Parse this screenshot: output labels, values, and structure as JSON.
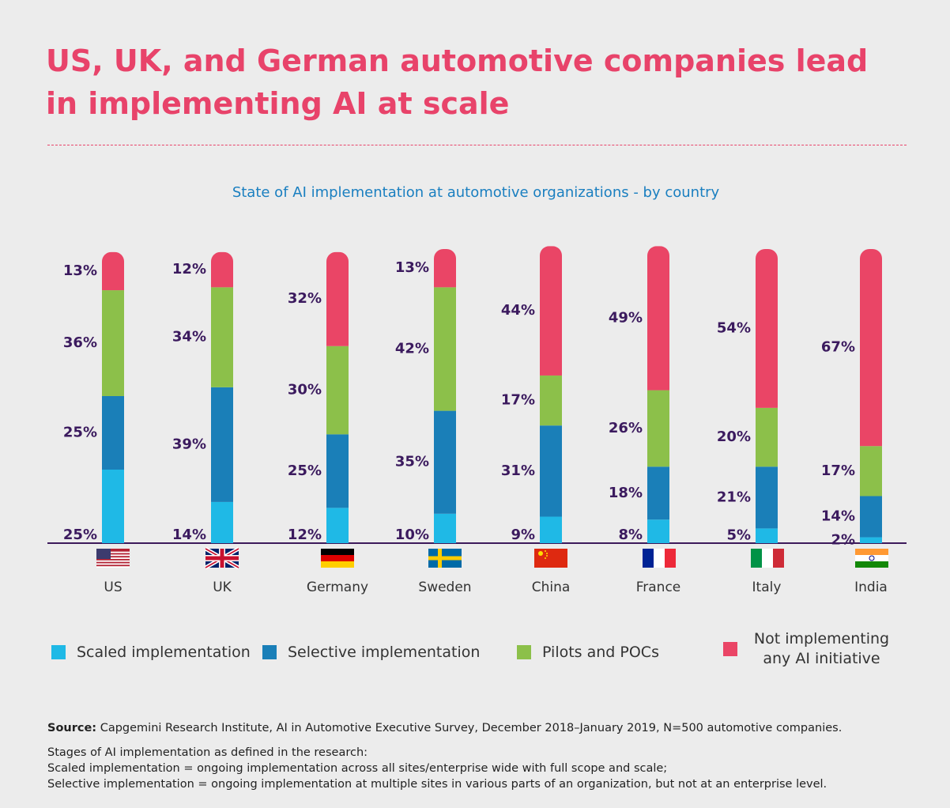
{
  "chart_data": {
    "type": "stacked_bar",
    "title": "US, UK, and German automotive companies lead in implementing AI at scale",
    "subtitle": "State of AI implementation at automotive organizations - by country",
    "categories": [
      "US",
      "UK",
      "Germany",
      "Sweden",
      "China",
      "France",
      "Italy",
      "India"
    ],
    "series": [
      {
        "name": "Scaled implementation",
        "color": "#1fb9e6",
        "values": [
          25,
          14,
          12,
          10,
          9,
          8,
          5,
          2
        ],
        "value_labels": [
          "25%",
          "14%",
          "12%",
          "10%",
          "9%",
          "8%",
          "5%",
          "2%"
        ]
      },
      {
        "name": "Selective implementation",
        "color": "#1a7fb8",
        "values": [
          25,
          39,
          25,
          35,
          31,
          18,
          21,
          14
        ],
        "value_labels": [
          "25%",
          "39%",
          "25%",
          "35%",
          "31%",
          "18%",
          "21%",
          "14%"
        ]
      },
      {
        "name": "Pilots and POCs",
        "color": "#8cc04a",
        "values": [
          36,
          34,
          30,
          42,
          17,
          26,
          20,
          17
        ],
        "value_labels": [
          "36%",
          "34%",
          "30%",
          "42%",
          "17%",
          "26%",
          "20%",
          "17%"
        ]
      },
      {
        "name": "Not implementing any AI initiative",
        "color": "#ea4566",
        "values": [
          13,
          12,
          32,
          13,
          44,
          49,
          54,
          67
        ],
        "value_labels": [
          "13%",
          "12%",
          "32%",
          "13%",
          "44%",
          "49%",
          "54%",
          "67%"
        ]
      }
    ],
    "source_label": "Source:",
    "source": "Capgemini Research Institute, AI in Automotive Executive Survey, December 2018–January 2019, N=500 automotive companies.",
    "notes": [
      "Stages of AI implementation as defined in the research:",
      "Scaled implementation = ongoing implementation across all sites/enterprise wide with full scope and scale;",
      "Selective implementation = ongoing implementation at multiple sites in various parts of an organization, but not at an enterprise level."
    ]
  }
}
